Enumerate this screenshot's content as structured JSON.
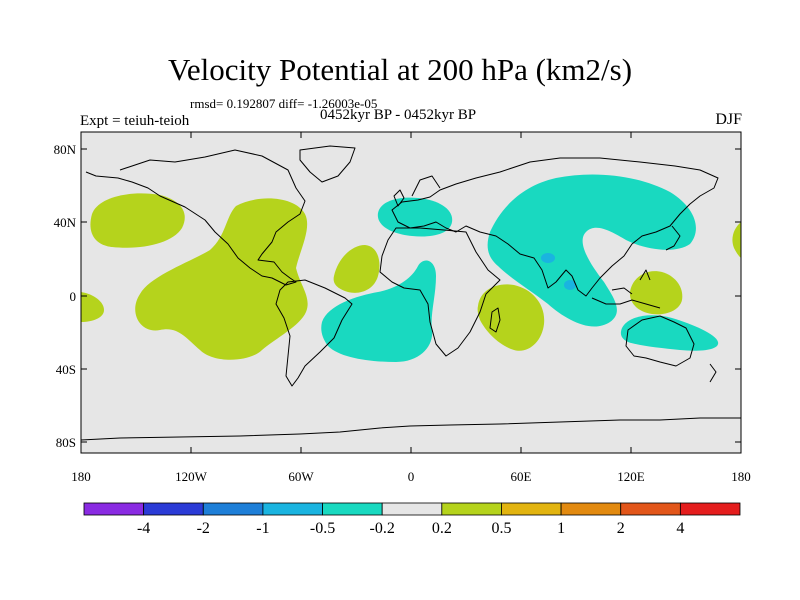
{
  "title": "Velocity Potential at 200 hPa (km2/s)",
  "stats": "rmsd= 0.192807 diff= -1.26003e-05",
  "period": "0452kyr BP - 0452kyr BP",
  "experiment": "Expt = teiuh-teioh",
  "season": "DJF",
  "lat_ticks": [
    "80N",
    "40N",
    "0",
    "40S",
    "80S"
  ],
  "lon_ticks": [
    "180",
    "120W",
    "60W",
    "0",
    "60E",
    "120E",
    "180"
  ],
  "colorbar": {
    "colors": [
      "#8a2be2",
      "#2b3bd6",
      "#1e7fd8",
      "#1ab4e0",
      "#19d9c0",
      "#e6e6e6",
      "#b5d31c",
      "#e2b410",
      "#e28a10",
      "#e2561a",
      "#e41d1d"
    ],
    "labels": [
      "-4",
      "-2",
      "-1",
      "-0.5",
      "-0.2",
      "0.2",
      "0.5",
      "1",
      "2",
      "4"
    ]
  },
  "colors": {
    "ocean_bg": "#e6e6e6",
    "positive": "#b5d31c",
    "negative": "#19d9c0",
    "strong_negative": "#1ab4e0"
  }
}
